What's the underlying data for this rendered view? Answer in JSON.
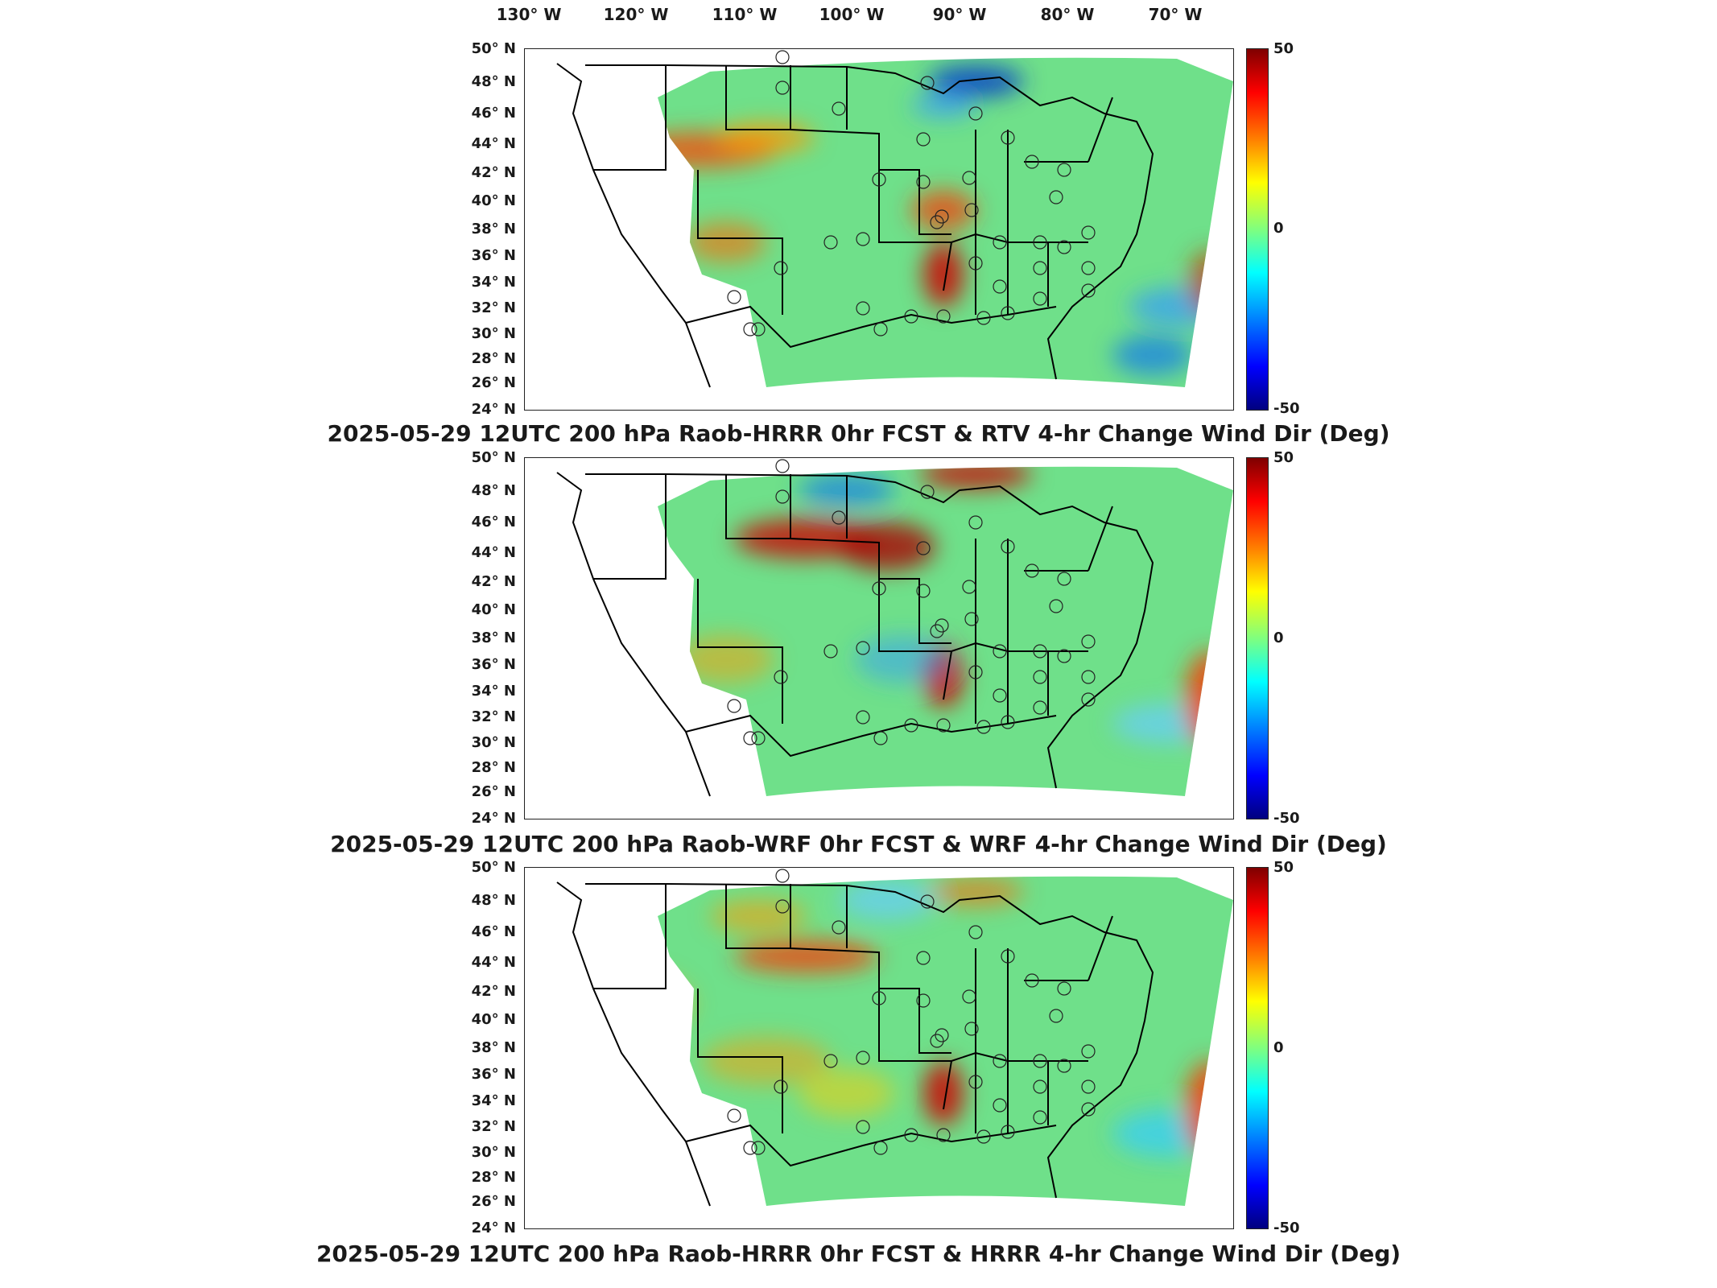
{
  "longitude_labels": [
    "130° W",
    "120° W",
    "110° W",
    "100° W",
    "90° W",
    "80° W",
    "70° W"
  ],
  "latitude_labels": [
    "50° N",
    "48° N",
    "46° N",
    "44° N",
    "42° N",
    "40° N",
    "38° N",
    "36° N",
    "34° N",
    "32° N",
    "30° N",
    "28° N",
    "26° N",
    "24° N"
  ],
  "colorbar": {
    "max": "50",
    "mid": "0",
    "min": "-50"
  },
  "panels": [
    {
      "title": "2025-05-29 12UTC 200 hPa Raob-HRRR 0hr FCST & RTV 4-hr Change Wind Dir (Deg)"
    },
    {
      "title": "2025-05-29 12UTC 200 hPa Raob-WRF 0hr FCST & WRF 4-hr Change Wind Dir (Deg)"
    },
    {
      "title": "2025-05-29 12UTC 200 hPa Raob-HRRR 0hr FCST & HRRR 4-hr Change Wind Dir (Deg)"
    }
  ],
  "colors": {
    "field_base": "#6fe08a",
    "coast": "#000000"
  }
}
